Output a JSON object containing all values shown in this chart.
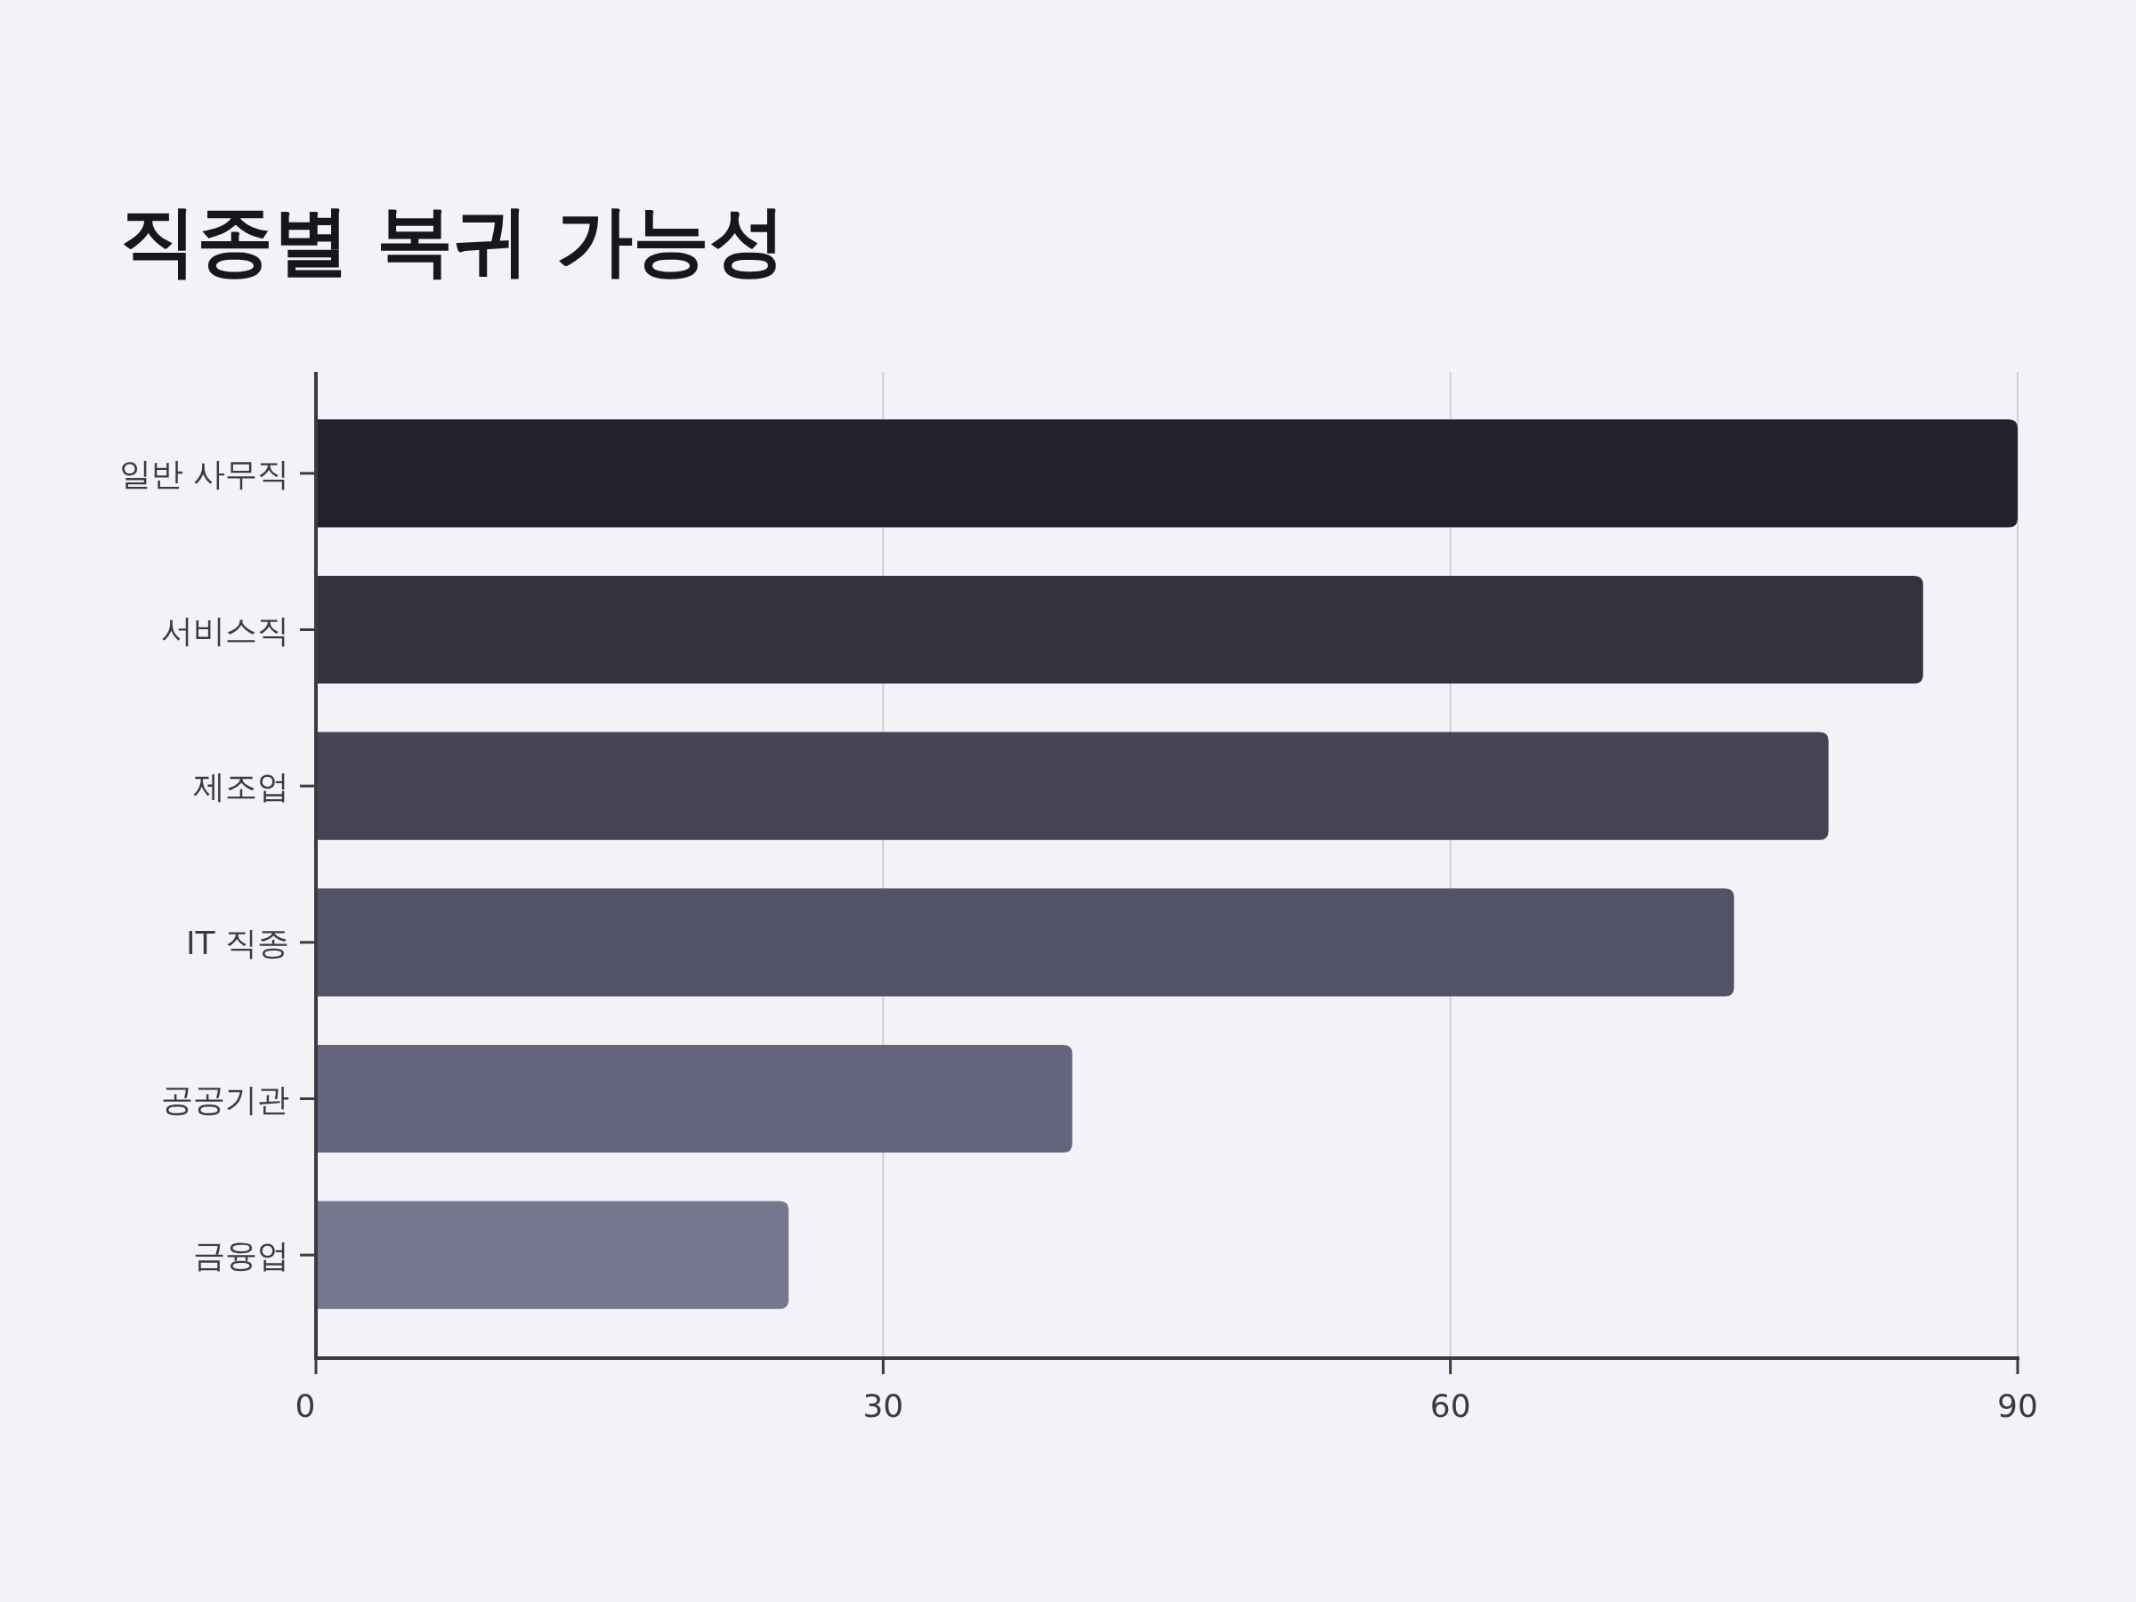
{
  "chart_data": {
    "type": "bar",
    "orientation": "horizontal",
    "title": "직종별 복귀 가능성",
    "categories": [
      "일반 사무직",
      "서비스직",
      "제조업",
      "IT 직종",
      "공공기관",
      "금융업"
    ],
    "values": [
      90,
      85,
      80,
      75,
      40,
      25
    ],
    "colors": [
      "#22222c",
      "#33323f",
      "#454454",
      "#535368",
      "#65647e",
      "#77768f"
    ],
    "xlim": [
      0,
      90
    ],
    "xticks": [
      0,
      30,
      60,
      90
    ],
    "grid": "x"
  }
}
